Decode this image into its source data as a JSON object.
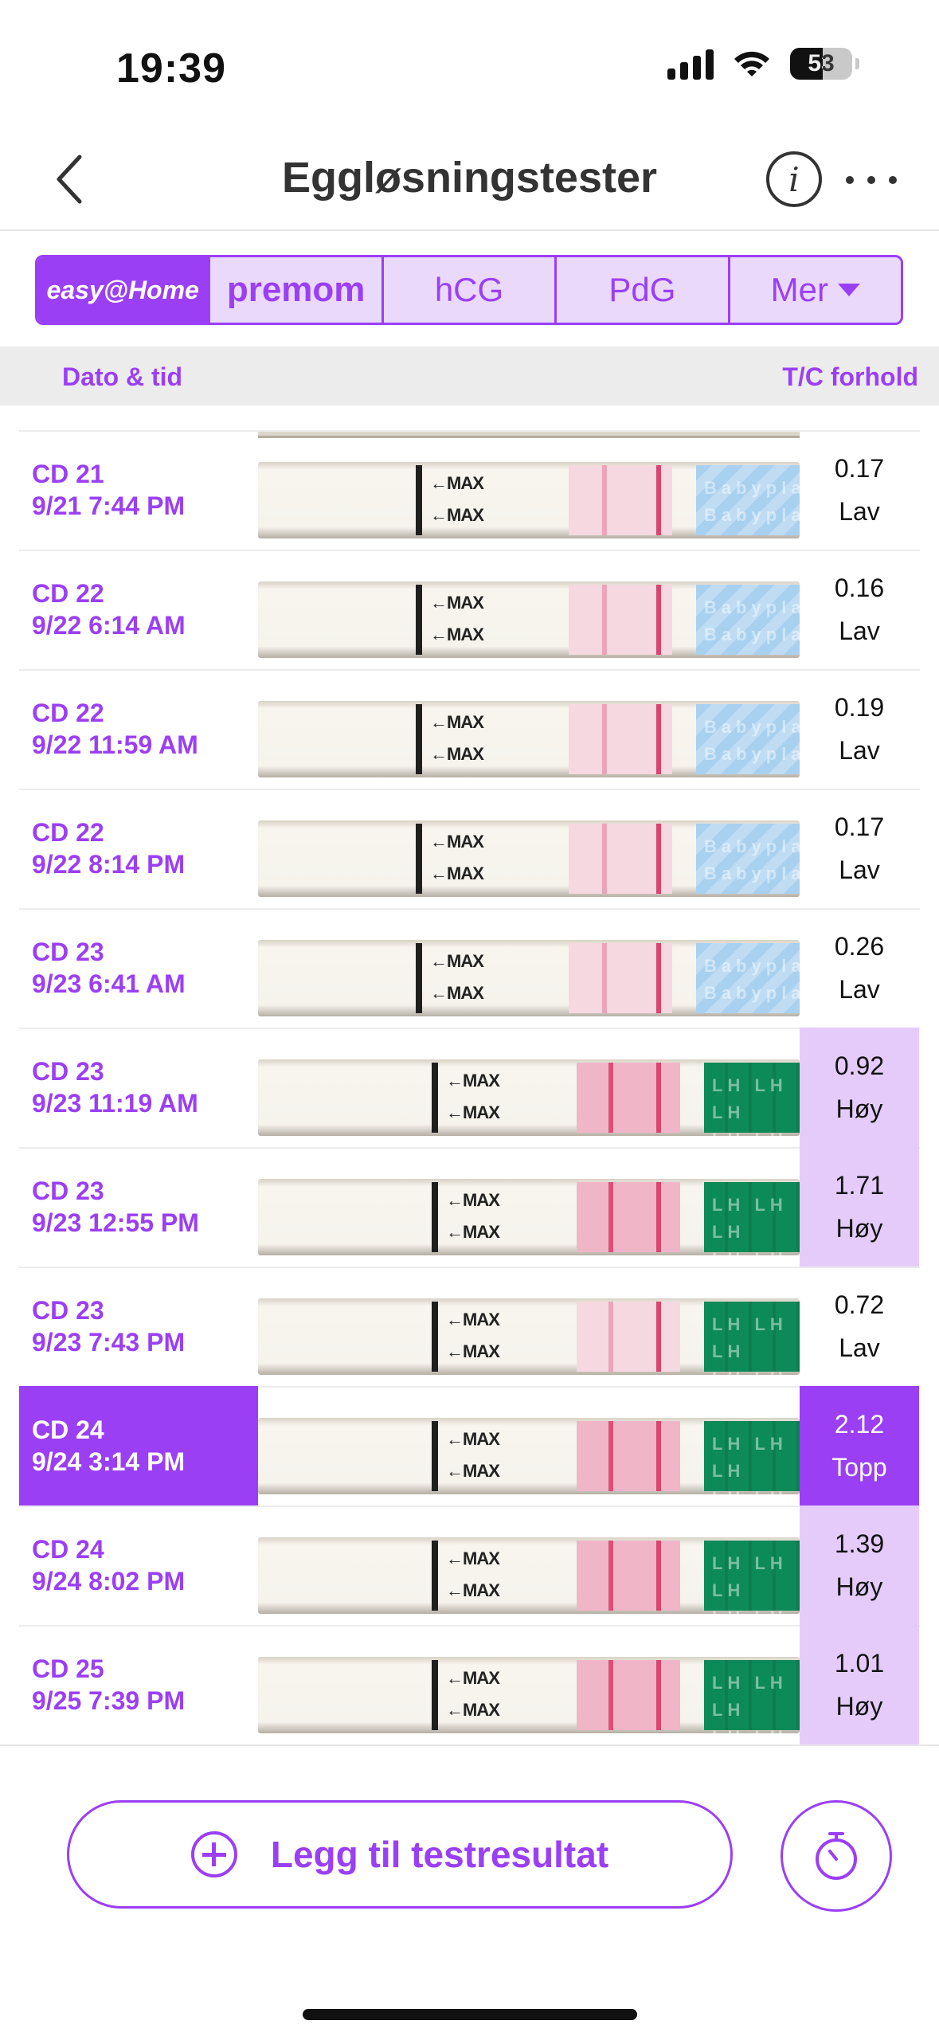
{
  "status_bar": {
    "time": "19:39",
    "battery": "53",
    "battery_level": 0.53
  },
  "header": {
    "title": "Eggløsningstester",
    "back_icon": "chevron-left-icon",
    "info_icon": "info-icon",
    "more_icon": "more-horizontal-icon"
  },
  "tabs": [
    {
      "label": "easy@Home"
    },
    {
      "label": "premom"
    },
    {
      "label": "hCG"
    },
    {
      "label": "PdG"
    },
    {
      "label": "Mer"
    }
  ],
  "columns": {
    "date": "Dato & tid",
    "ratio": "T/C forhold"
  },
  "strip_text": {
    "max": "←MAX",
    "lh": "LH LH LH",
    "brand": "Babyplan"
  },
  "rows": [
    {
      "cd": "CD 21",
      "datetime": "9/21 7:44 PM",
      "ratio": "0.17",
      "level": "Lav"
    },
    {
      "cd": "CD 22",
      "datetime": "9/22 6:14 AM",
      "ratio": "0.16",
      "level": "Lav"
    },
    {
      "cd": "CD 22",
      "datetime": "9/22 11:59 AM",
      "ratio": "0.19",
      "level": "Lav"
    },
    {
      "cd": "CD 22",
      "datetime": "9/22 8:14 PM",
      "ratio": "0.17",
      "level": "Lav"
    },
    {
      "cd": "CD 23",
      "datetime": "9/23 6:41 AM",
      "ratio": "0.26",
      "level": "Lav"
    },
    {
      "cd": "CD 23",
      "datetime": "9/23 11:19 AM",
      "ratio": "0.92",
      "level": "Høy"
    },
    {
      "cd": "CD 23",
      "datetime": "9/23 12:55 PM",
      "ratio": "1.71",
      "level": "Høy"
    },
    {
      "cd": "CD 23",
      "datetime": "9/23 7:43 PM",
      "ratio": "0.72",
      "level": "Lav"
    },
    {
      "cd": "CD 24",
      "datetime": "9/24 3:14 PM",
      "ratio": "2.12",
      "level": "Topp"
    },
    {
      "cd": "CD 24",
      "datetime": "9/24 8:02 PM",
      "ratio": "1.39",
      "level": "Høy"
    },
    {
      "cd": "CD 25",
      "datetime": "9/25 7:39 PM",
      "ratio": "1.01",
      "level": "Høy"
    }
  ],
  "bottom": {
    "add_label": "Legg til testresultat",
    "add_icon": "plus-circle-icon",
    "timer_icon": "timer-icon"
  },
  "colors": {
    "accent": "#9b3ff5",
    "high_bg": "#e5cbfa",
    "test_line": "#d8456f"
  }
}
